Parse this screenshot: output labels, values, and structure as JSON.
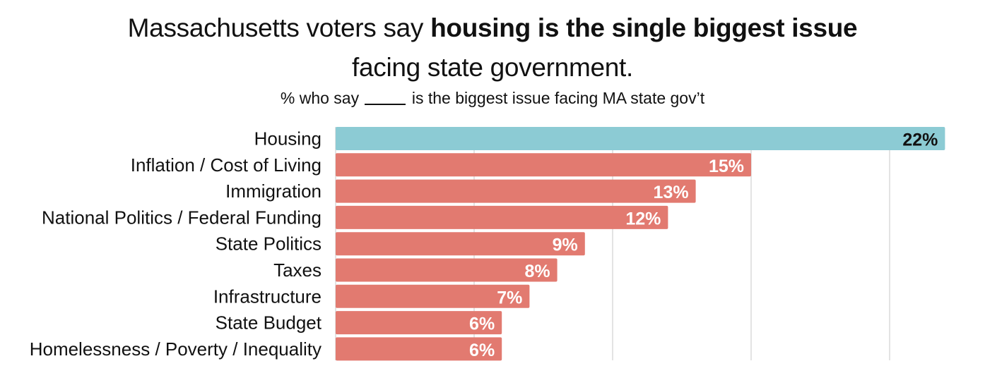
{
  "title": {
    "line1_prefix": "Massachusetts voters say ",
    "line1_bold": "housing is the single biggest issue",
    "line2": "facing state government."
  },
  "subtitle": {
    "before": "% who say",
    "after": "is the biggest issue facing MA state gov’t"
  },
  "colors": {
    "highlight": "#8ccbd4",
    "bar": "#e27a70",
    "grid": "#d0d0d0",
    "highlight_label": "#111111",
    "bar_label": "#ffffff"
  },
  "chart_data": {
    "type": "bar",
    "orientation": "horizontal",
    "categories": [
      "Housing",
      "Inflation / Cost of Living",
      "Immigration",
      "National Politics / Federal Funding",
      "State Politics",
      "Taxes",
      "Infrastructure",
      "State Budget",
      "Homelessness / Poverty / Inequality"
    ],
    "values": [
      22,
      15,
      13,
      12,
      9,
      8,
      7,
      6,
      6
    ],
    "data_labels": [
      "22%",
      "15%",
      "13%",
      "12%",
      "9%",
      "8%",
      "7%",
      "6%",
      "6%"
    ],
    "highlight_index": 0,
    "xlim": [
      0,
      22
    ],
    "gridlines": [
      0,
      5,
      10,
      15,
      20
    ],
    "grid": true,
    "legend": false
  }
}
